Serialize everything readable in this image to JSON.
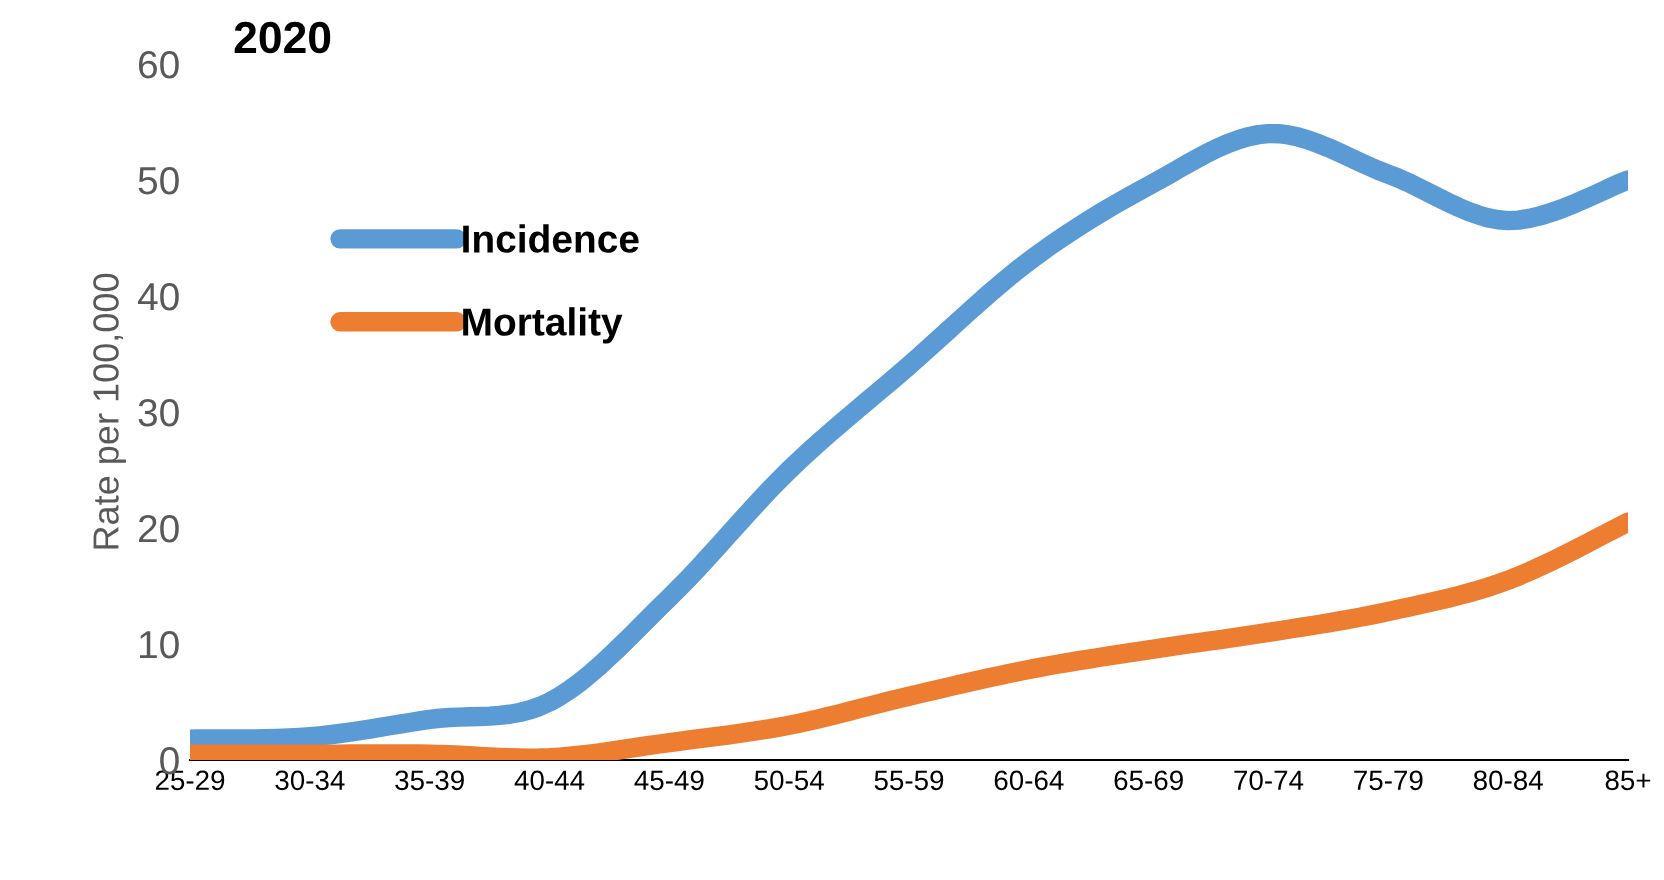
{
  "chart_data": {
    "type": "line",
    "title": "2020",
    "ylabel": "Rate per 100,000",
    "categories": [
      "25-29",
      "30-34",
      "35-39",
      "40-44",
      "45-49",
      "50-54",
      "55-59",
      "60-64",
      "65-69",
      "70-74",
      "75-79",
      "80-84",
      "85+"
    ],
    "series": [
      {
        "name": "Incidence",
        "color": "#5b9bd5",
        "values": [
          1.8,
          2,
          3.5,
          5,
          14,
          25,
          34,
          43,
          49.5,
          54,
          50.5,
          46.5,
          50
        ]
      },
      {
        "name": "Mortality",
        "color": "#ed7d31",
        "values": [
          0.5,
          0.5,
          0.5,
          0.2,
          1.5,
          3,
          5.5,
          7.8,
          9.5,
          11,
          12.8,
          15.5,
          20.5
        ]
      }
    ],
    "ylim": [
      0,
      60
    ],
    "yticks": [
      0,
      10,
      20,
      30,
      40,
      50,
      60
    ],
    "grid": false,
    "legend": "top left",
    "marker": "none",
    "line_style": "solid"
  }
}
